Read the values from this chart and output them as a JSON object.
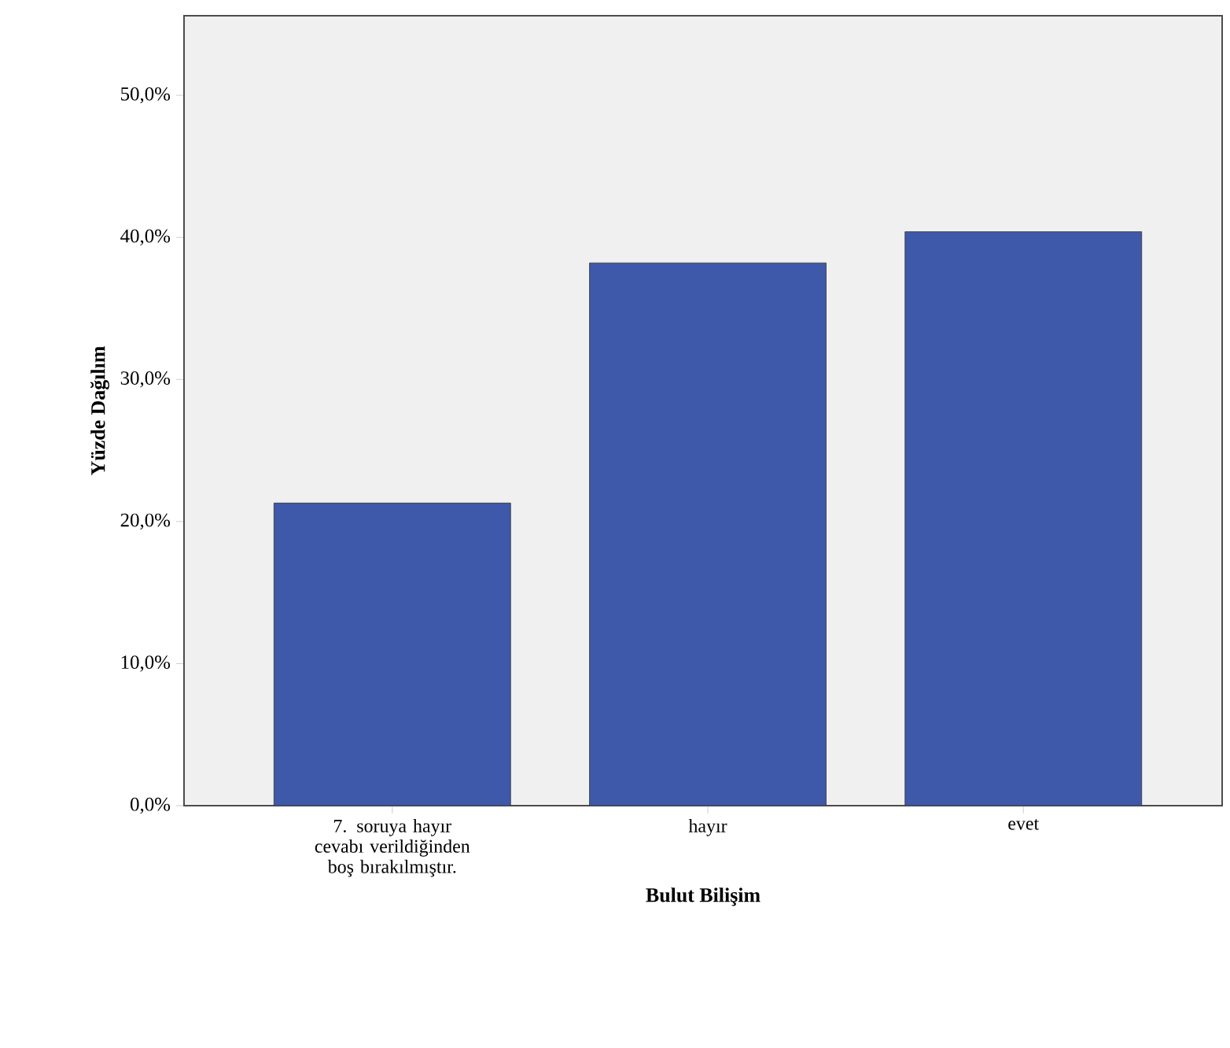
{
  "chart_data": {
    "type": "bar",
    "xlabel": "Bulut Bilişim",
    "ylabel": "Yüzde Dağılım",
    "categories": [
      "7. soruya hayır cevabı verildiğinden boş bırakılmıştır.",
      "hayır",
      "evet"
    ],
    "values": [
      21.3,
      38.2,
      40.4
    ],
    "color": "#3e58aa",
    "ylim": [
      0,
      55.6
    ],
    "yticks": [
      {
        "value": 0,
        "label": "0,0%"
      },
      {
        "value": 10,
        "label": "10,0%"
      },
      {
        "value": 20,
        "label": "20,0%"
      },
      {
        "value": 30,
        "label": "30,0%"
      },
      {
        "value": 40,
        "label": "40,0%"
      },
      {
        "value": 50,
        "label": "50,0%"
      }
    ],
    "grid": false
  }
}
